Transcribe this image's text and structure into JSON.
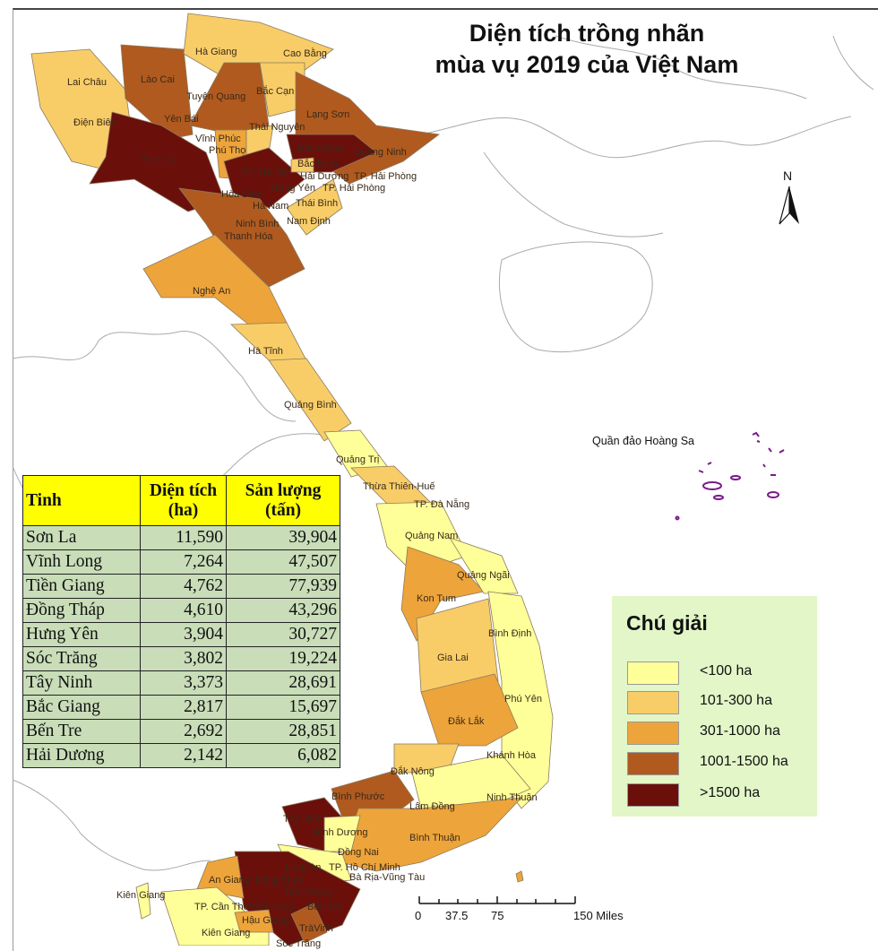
{
  "title": {
    "line1": "Diện tích trồng nhãn",
    "line2": "mùa vụ 2019 của Việt Nam"
  },
  "map": {
    "island_label": "Quần đảo Hoàng Sa",
    "north_label": "N",
    "colors": {
      "lt100": "#ffff99",
      "c101_300": "#f8cd68",
      "c301_1000": "#eda43a",
      "c1001_1500": "#b05a1f",
      "gt1500": "#6b0f0b",
      "island": "#7a1a8a"
    },
    "province_labels": [
      "Hà Giang",
      "Cao Bằng",
      "Lai Châu",
      "Lào Cai",
      "Tuyên Quang",
      "Bắc Cạn",
      "Điện Biên",
      "Yên Bái",
      "Lạng Sơn",
      "Thái Nguyên",
      "Vĩnh Phúc",
      "Phú Thọ",
      "Bắc Giang",
      "Quảng Ninh",
      "Sơn La",
      "Bắc Ninh",
      "TP. Hà Nội",
      "Hải Dương",
      "TP. Hải Phòng",
      "Hưng Yên",
      "TP. Hải Phòng",
      "Hòa Bình",
      "Thái Bình",
      "Hà Nam",
      "Ninh Bình",
      "Nam Định",
      "Thanh Hóa",
      "Nghệ An",
      "Hà Tĩnh",
      "Quảng Bình",
      "Quảng Trị",
      "Thừa Thiên-Huế",
      "TP. Đà Nẵng",
      "Quảng Nam",
      "Quảng Ngãi",
      "Kon Tum",
      "Bình Định",
      "Gia Lai",
      "Phú Yên",
      "Đắk Lắk",
      "Khánh Hòa",
      "Đắk Nông",
      "Ninh Thuận",
      "Bình Phước",
      "Lâm Đồng",
      "Tây Ninh",
      "Bình Dương",
      "Bình Thuận",
      "Đồng Nai",
      "Long An",
      "TP. Hồ Chí Minh",
      "Bà Rịa-Vũng Tàu",
      "An Giang",
      "Đồng Tháp",
      "Tiền Giang",
      "Kiên Giang",
      "TP. Cần Thơ",
      "Vĩnh Long",
      "Bến Tre",
      "Hậu Giang",
      "TràVinh",
      "Kiên Giang",
      "Sóc Trăng"
    ]
  },
  "table": {
    "headers": [
      "Tinh",
      "Diện tích (ha)",
      "Sản lượng (tấn)"
    ],
    "rows": [
      [
        "Sơn La",
        "11,590",
        "39,904"
      ],
      [
        "Vĩnh Long",
        "7,264",
        "47,507"
      ],
      [
        "Tiền Giang",
        "4,762",
        "77,939"
      ],
      [
        "Đồng Tháp",
        "4,610",
        "43,296"
      ],
      [
        "Hưng Yên",
        "3,904",
        "30,727"
      ],
      [
        "Sóc Trăng",
        "3,802",
        "19,224"
      ],
      [
        "Tây Ninh",
        "3,373",
        "28,691"
      ],
      [
        "Bắc Giang",
        "2,817",
        "15,697"
      ],
      [
        "Bến Tre",
        "2,692",
        "28,851"
      ],
      [
        "Hải Dương",
        "2,142",
        "6,082"
      ]
    ]
  },
  "legend": {
    "title": "Chú giải",
    "items": [
      {
        "label": "<100 ha",
        "color": "#ffff99"
      },
      {
        "label": "101-300 ha",
        "color": "#f8cd68"
      },
      {
        "label": "301-1000 ha",
        "color": "#eda43a"
      },
      {
        "label": "1001-1500 ha",
        "color": "#b05a1f"
      },
      {
        "label": ">1500 ha",
        "color": "#6b0f0b"
      }
    ]
  },
  "scale": {
    "labels": [
      "0",
      "37.5",
      "75",
      "150 Miles"
    ]
  }
}
